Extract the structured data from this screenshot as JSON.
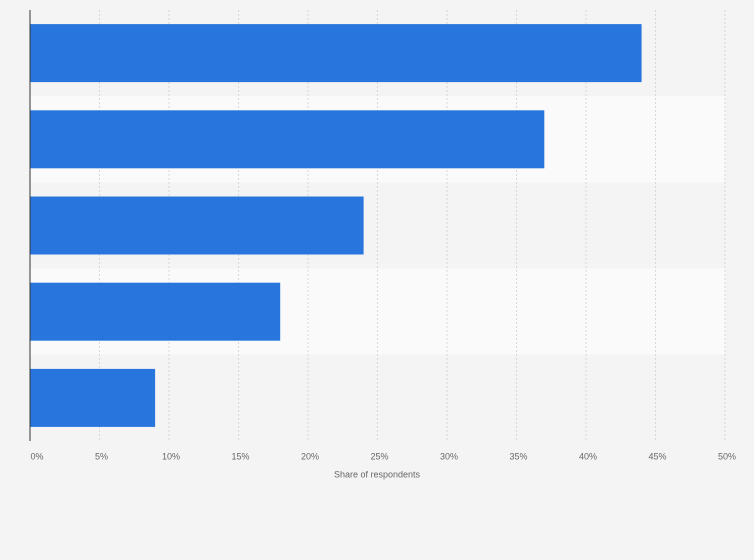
{
  "chart_data": {
    "type": "hbar",
    "categories": [
      null,
      null,
      null,
      null,
      null
    ],
    "values": [
      44,
      37,
      24,
      18,
      9
    ],
    "color": "#2876dd",
    "x_label": "Share of respondents",
    "xlim": [
      0,
      50
    ],
    "xticks": [
      {
        "value": 0,
        "label": "0%"
      },
      {
        "value": 5,
        "label": "5%"
      },
      {
        "value": 10,
        "label": "10%"
      },
      {
        "value": 15,
        "label": "15%"
      },
      {
        "value": 20,
        "label": "20%"
      },
      {
        "value": 25,
        "label": "25%"
      },
      {
        "value": 30,
        "label": "30%"
      },
      {
        "value": 35,
        "label": "35%"
      },
      {
        "value": 40,
        "label": "40%"
      },
      {
        "value": 45,
        "label": "45%"
      },
      {
        "value": 50,
        "label": "50%"
      }
    ],
    "grid": true
  }
}
